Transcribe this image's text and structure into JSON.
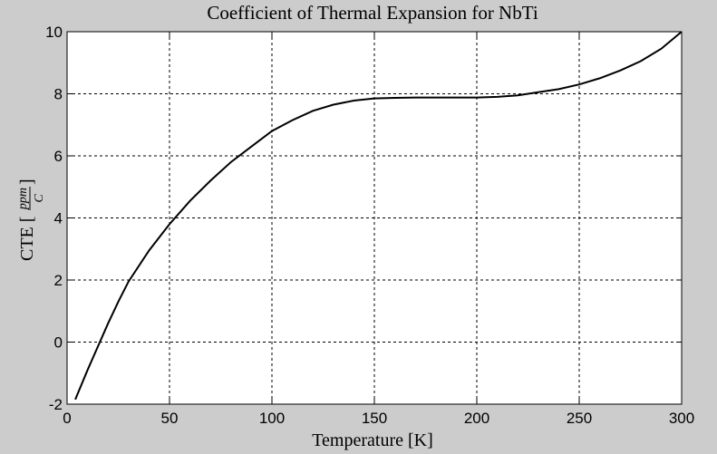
{
  "chart_data": {
    "type": "line",
    "title": "Coefficient of Thermal Expansion for NbTi",
    "xlabel": "Temperature [K]",
    "ylabel": "CTE [ppm/C]",
    "ylabel_parts": {
      "prefix": "CTE [",
      "numerator": "ppm",
      "denominator": "C",
      "suffix": "]"
    },
    "xlim": [
      0,
      300
    ],
    "ylim": [
      -2,
      10
    ],
    "xticks": [
      0,
      50,
      100,
      150,
      200,
      250,
      300
    ],
    "yticks": [
      -2,
      0,
      2,
      4,
      6,
      8,
      10
    ],
    "grid": true,
    "series": [
      {
        "x": [
          4,
          10,
          15,
          20,
          25,
          30,
          40,
          50,
          60,
          70,
          80,
          90,
          100,
          110,
          120,
          130,
          140,
          150,
          160,
          170,
          180,
          190,
          200,
          210,
          220,
          230,
          240,
          250,
          260,
          270,
          280,
          290,
          300
        ],
        "y": [
          -1.85,
          -0.9,
          -0.15,
          0.6,
          1.3,
          1.95,
          2.95,
          3.8,
          4.55,
          5.2,
          5.8,
          6.3,
          6.8,
          7.15,
          7.45,
          7.65,
          7.78,
          7.85,
          7.87,
          7.88,
          7.88,
          7.88,
          7.88,
          7.9,
          7.95,
          8.05,
          8.15,
          8.3,
          8.5,
          8.75,
          9.05,
          9.45,
          10.0
        ]
      }
    ]
  }
}
